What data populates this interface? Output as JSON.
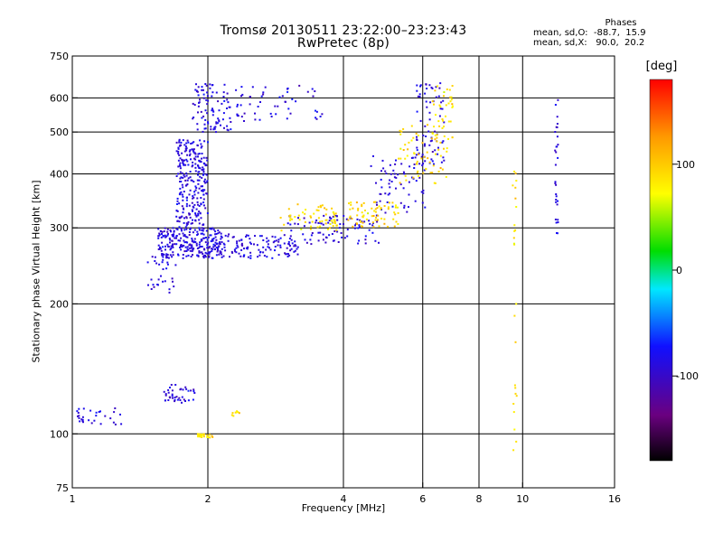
{
  "chart_data": {
    "type": "scatter",
    "title": "Tromsø 20130511 23:22:00–23:23:43",
    "subtitle": "RwPretec (8p)",
    "xlabel": "Frequency [MHz]",
    "ylabel": "Stationary phase Virtual Height [km]",
    "x_scale": "log",
    "y_scale": "log",
    "xlim": [
      1,
      16
    ],
    "ylim": [
      75,
      750
    ],
    "x_ticks": [
      1,
      2,
      4,
      6,
      8,
      10,
      16
    ],
    "x_tick_labels": [
      "1",
      "2",
      "4",
      "6",
      "8",
      "10",
      "16"
    ],
    "y_ticks": [
      75,
      100,
      200,
      300,
      400,
      500,
      600,
      750
    ],
    "y_tick_labels": [
      "75",
      "100",
      "200",
      "300",
      "400",
      "500",
      "600",
      "750"
    ],
    "grid": true,
    "colorbar": {
      "label": "[deg]",
      "range": [
        -180,
        180
      ],
      "ticks": [
        100,
        0,
        -100
      ],
      "tick_labels": [
        "100",
        "0",
        "-100"
      ]
    },
    "stats": {
      "heading": "Phases",
      "o_line": "mean, sd,O:  -88.7,  15.9",
      "x_line": "mean, sd,X:   90.0,  20.2"
    },
    "series": [
      {
        "mode": "O",
        "phase_mean": -88.7,
        "phase_sd": 15.9,
        "clusters": [
          {
            "x": [
              1.55,
              2.15
            ],
            "y": [
              255,
              300
            ],
            "n": 260
          },
          {
            "x": [
              1.7,
              2.0
            ],
            "y": [
              300,
              480
            ],
            "n": 260
          },
          {
            "x": [
              1.85,
              2.25
            ],
            "y": [
              500,
              650
            ],
            "n": 90
          },
          {
            "x": [
              2.3,
              3.6
            ],
            "y": [
              530,
              640
            ],
            "n": 55
          },
          {
            "x": [
              2.1,
              3.2
            ],
            "y": [
              255,
              290
            ],
            "n": 120
          },
          {
            "x": [
              3.0,
              4.8
            ],
            "y": [
              275,
              320
            ],
            "n": 90
          },
          {
            "x": [
              4.6,
              6.1
            ],
            "y": [
              320,
              440
            ],
            "n": 70
          },
          {
            "x": [
              5.8,
              6.7
            ],
            "y": [
              420,
              650
            ],
            "n": 70
          },
          {
            "x": [
              1.45,
              1.7
            ],
            "y": [
              210,
              260
            ],
            "n": 30
          },
          {
            "x": [
              1.6,
              1.9
            ],
            "y": [
              118,
              130
            ],
            "n": 40
          },
          {
            "x": [
              1.02,
              1.3
            ],
            "y": [
              105,
              115
            ],
            "n": 30
          },
          {
            "x": [
              11.8,
              12.0
            ],
            "y": [
              280,
              600
            ],
            "n": 30
          }
        ]
      },
      {
        "mode": "X",
        "phase_mean": 90.0,
        "phase_sd": 20.2,
        "clusters": [
          {
            "x": [
              2.9,
              3.9
            ],
            "y": [
              295,
              340
            ],
            "n": 60
          },
          {
            "x": [
              4.1,
              5.3
            ],
            "y": [
              300,
              345
            ],
            "n": 70
          },
          {
            "x": [
              5.3,
              6.8
            ],
            "y": [
              380,
              520
            ],
            "n": 60
          },
          {
            "x": [
              6.3,
              7.0
            ],
            "y": [
              450,
              640
            ],
            "n": 40
          },
          {
            "x": [
              1.9,
              2.05
            ],
            "y": [
              98,
              100
            ],
            "n": 25
          },
          {
            "x": [
              2.25,
              2.35
            ],
            "y": [
              110,
              113
            ],
            "n": 8
          },
          {
            "x": [
              9.5,
              9.7
            ],
            "y": [
              90,
              420
            ],
            "n": 25
          }
        ]
      }
    ]
  }
}
